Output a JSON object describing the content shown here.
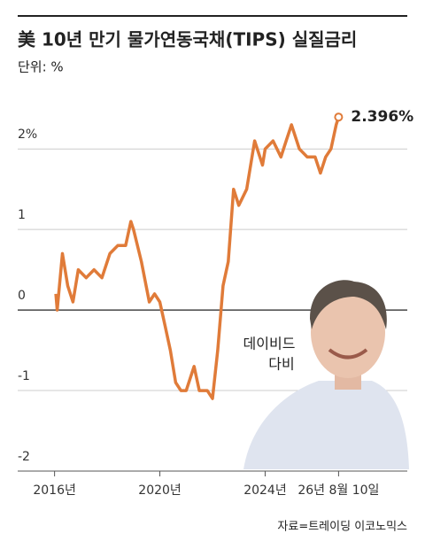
{
  "chart_data": {
    "type": "line",
    "title": "美 10년 만기 물가연동국채(TIPS) 실질금리",
    "subtitle": "단위: %",
    "source": "자료=트레이딩 이코노믹스",
    "photo_caption": [
      "데이비드",
      "다비"
    ],
    "x": [
      2016.05,
      2016.1,
      2016.3,
      2016.5,
      2016.7,
      2016.9,
      2017.2,
      2017.5,
      2017.8,
      2018.1,
      2018.4,
      2018.7,
      2018.9,
      2019.0,
      2019.3,
      2019.6,
      2019.8,
      2020.0,
      2020.2,
      2020.4,
      2020.6,
      2020.8,
      2021.0,
      2021.3,
      2021.5,
      2021.8,
      2022.0,
      2022.2,
      2022.4,
      2022.6,
      2022.8,
      2023.0,
      2023.3,
      2023.6,
      2023.9,
      2024.0,
      2024.3,
      2024.6,
      2024.8,
      2025.0,
      2025.3,
      2025.6,
      2025.9,
      2026.1,
      2026.3,
      2026.5,
      2026.7,
      2026.79
    ],
    "series": [
      {
        "name": "TIPS 10Y",
        "color": "#e07b39",
        "values": [
          0.2,
          0.0,
          0.7,
          0.3,
          0.1,
          0.5,
          0.4,
          0.5,
          0.4,
          0.7,
          0.8,
          0.8,
          1.1,
          1.0,
          0.6,
          0.1,
          0.2,
          0.1,
          -0.2,
          -0.5,
          -0.9,
          -1.0,
          -1.0,
          -0.7,
          -1.0,
          -1.0,
          -1.1,
          -0.5,
          0.3,
          0.6,
          1.5,
          1.3,
          1.5,
          2.1,
          1.8,
          2.0,
          2.1,
          1.9,
          2.1,
          2.3,
          2.0,
          1.9,
          1.9,
          1.7,
          1.9,
          2.0,
          2.3,
          2.396
        ],
        "value_labels": [
          null,
          null,
          null,
          null,
          null,
          null,
          null,
          null,
          null,
          null,
          null,
          null,
          null,
          null,
          null,
          null,
          null,
          null,
          null,
          null,
          null,
          null,
          null,
          null,
          null,
          null,
          null,
          null,
          null,
          null,
          null,
          null,
          null,
          null,
          null,
          null,
          null,
          null,
          null,
          null,
          null,
          null,
          null,
          null,
          null,
          null,
          null,
          "2.396%"
        ]
      }
    ],
    "xlim": [
      2014.6,
      2029.4
    ],
    "xticks": [
      {
        "value": 2016,
        "label": "2016년"
      },
      {
        "value": 2020,
        "label": "2020년"
      },
      {
        "value": 2024,
        "label": "2024년"
      },
      {
        "value": 2026.79,
        "label": "26년 8월 10일"
      }
    ],
    "ylim": [
      -2,
      2.75
    ],
    "yticks": [
      {
        "value": 2,
        "label": "2%"
      },
      1,
      0,
      -1,
      -2
    ],
    "grid": true
  }
}
